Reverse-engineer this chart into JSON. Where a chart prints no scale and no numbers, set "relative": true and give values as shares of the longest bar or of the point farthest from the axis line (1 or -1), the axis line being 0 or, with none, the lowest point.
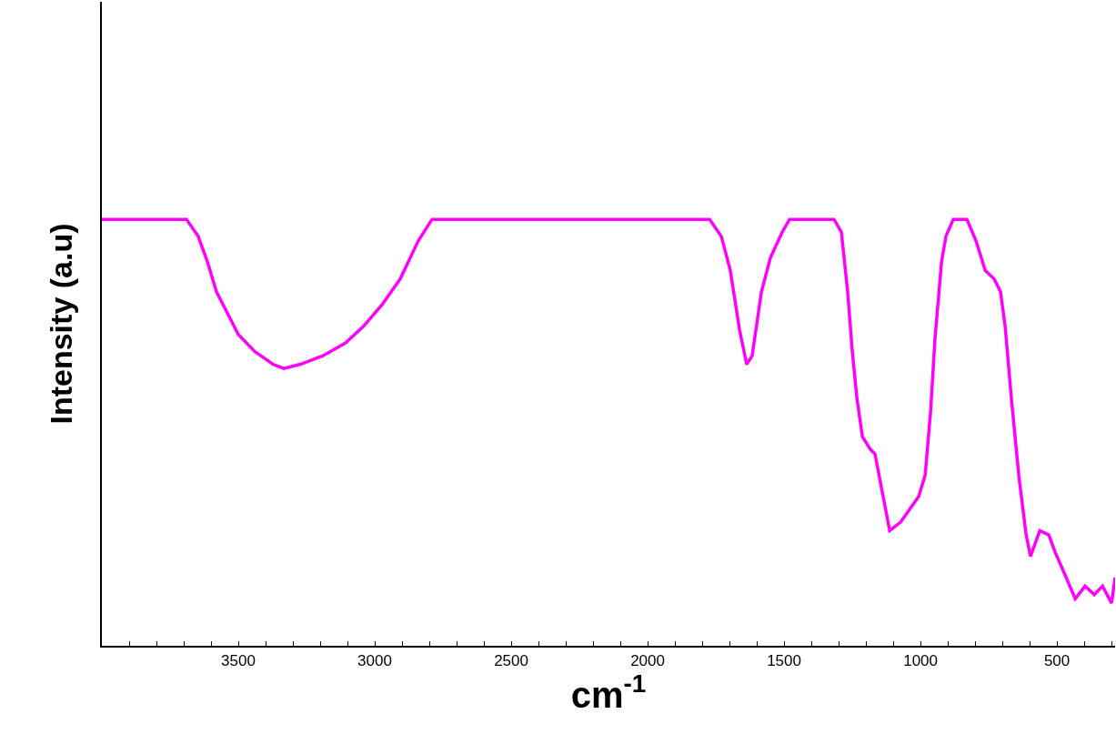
{
  "chart_data": {
    "type": "line",
    "relative": true,
    "xlabel": "cm$^{-1}$",
    "ylabel": "Intensity (a.u)",
    "xlim": [
      4000,
      287
    ],
    "xticks": [
      {
        "value": 3900,
        "label": null
      },
      {
        "value": 3800,
        "label": null
      },
      {
        "value": 3700,
        "label": null
      },
      {
        "value": 3600,
        "label": null
      },
      3500,
      {
        "value": 3400,
        "label": null
      },
      {
        "value": 3300,
        "label": null
      },
      {
        "value": 3200,
        "label": null
      },
      {
        "value": 3100,
        "label": null
      },
      3000,
      {
        "value": 2900,
        "label": null
      },
      {
        "value": 2800,
        "label": null
      },
      {
        "value": 2700,
        "label": null
      },
      {
        "value": 2600,
        "label": null
      },
      2500,
      {
        "value": 2400,
        "label": null
      },
      {
        "value": 2300,
        "label": null
      },
      {
        "value": 2200,
        "label": null
      },
      {
        "value": 2100,
        "label": null
      },
      2000,
      {
        "value": 1900,
        "label": null
      },
      {
        "value": 1800,
        "label": null
      },
      {
        "value": 1700,
        "label": null
      },
      {
        "value": 1600,
        "label": null
      },
      1500,
      {
        "value": 1400,
        "label": null
      },
      {
        "value": 1300,
        "label": null
      },
      {
        "value": 1200,
        "label": null
      },
      {
        "value": 1100,
        "label": null
      },
      1000,
      {
        "value": 900,
        "label": null
      },
      {
        "value": 800,
        "label": null
      },
      {
        "value": 700,
        "label": null
      },
      {
        "value": 600,
        "label": null
      },
      500,
      {
        "value": 400,
        "label": null
      },
      {
        "value": 300,
        "label": null
      }
    ],
    "grid": false,
    "marker": "none",
    "line_style": "solid",
    "series": [
      {
        "color": "#ff00ff",
        "x": [
          4000,
          3690,
          3647,
          3613,
          3580,
          3540,
          3500,
          3440,
          3373,
          3333,
          3273,
          3190,
          3107,
          3040,
          2973,
          2907,
          2840,
          2790,
          1773,
          1730,
          1697,
          1663,
          1637,
          1617,
          1583,
          1550,
          1507,
          1480,
          1317,
          1290,
          1267,
          1250,
          1233,
          1213,
          1183,
          1167,
          1140,
          1113,
          1073,
          1040,
          1007,
          983,
          963,
          947,
          923,
          907,
          880,
          830,
          797,
          763,
          730,
          707,
          690,
          667,
          640,
          613,
          597,
          563,
          530,
          507,
          473,
          433,
          397,
          363,
          333,
          300,
          287
        ],
        "values": [
          1.0,
          1.0,
          0.96,
          0.9,
          0.83,
          0.78,
          0.73,
          0.69,
          0.66,
          0.65,
          0.66,
          0.68,
          0.71,
          0.75,
          0.8,
          0.86,
          0.95,
          1.0,
          1.0,
          0.96,
          0.88,
          0.74,
          0.66,
          0.68,
          0.83,
          0.91,
          0.97,
          1.0,
          1.0,
          0.97,
          0.83,
          0.69,
          0.58,
          0.49,
          0.46,
          0.45,
          0.36,
          0.27,
          0.29,
          0.32,
          0.35,
          0.4,
          0.55,
          0.72,
          0.9,
          0.96,
          1.0,
          1.0,
          0.95,
          0.88,
          0.86,
          0.83,
          0.75,
          0.58,
          0.4,
          0.26,
          0.21,
          0.27,
          0.26,
          0.22,
          0.17,
          0.11,
          0.14,
          0.12,
          0.14,
          0.1,
          0.16
        ]
      }
    ]
  }
}
